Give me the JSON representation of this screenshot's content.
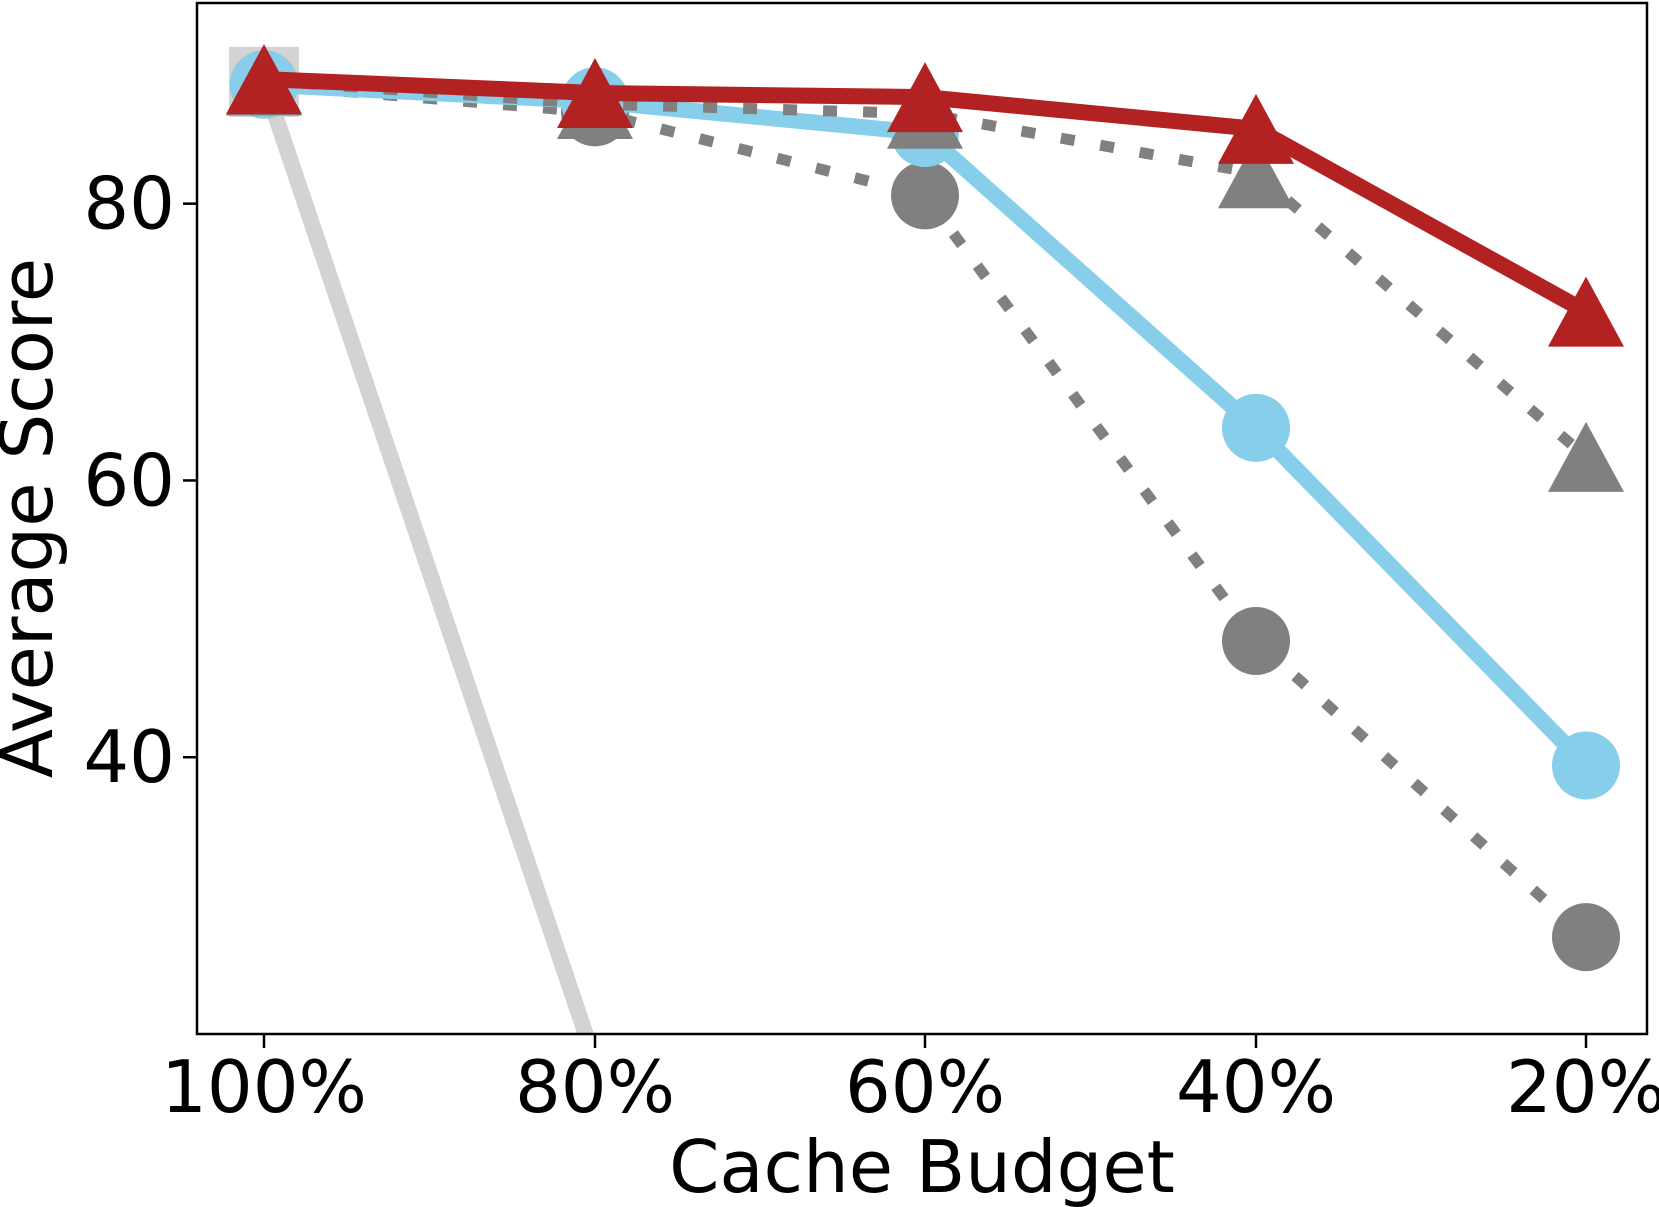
{
  "chart_data": {
    "type": "line",
    "xlabel": "Cache Budget",
    "ylabel": "Average Score",
    "categories": [
      "100%",
      "80%",
      "60%",
      "40%",
      "20%"
    ],
    "yticks": [
      40,
      60,
      80
    ],
    "ylim": [
      20,
      94.5
    ],
    "grid": false,
    "legend": "none",
    "series": [
      {
        "values": [
          88.8,
          18.0,
          null,
          null,
          null
        ],
        "color": "#d3d3d3",
        "style": "solid",
        "marker": "square"
      },
      {
        "values": [
          88.6,
          86.6,
          80.6,
          48.4,
          27.0
        ],
        "color": "#808080",
        "style": "dotted",
        "marker": "circle"
      },
      {
        "values": [
          88.6,
          87.4,
          85.1,
          63.8,
          39.4
        ],
        "color": "#87ceeb",
        "style": "solid",
        "marker": "circle"
      },
      {
        "values": [
          88.9,
          87.2,
          86.5,
          82.2,
          61.7
        ],
        "color": "#808080",
        "style": "dotted",
        "marker": "triangle"
      },
      {
        "values": [
          89.0,
          88.0,
          87.7,
          85.4,
          72.2
        ],
        "color": "#b22222",
        "style": "solid",
        "marker": "triangle"
      }
    ]
  }
}
